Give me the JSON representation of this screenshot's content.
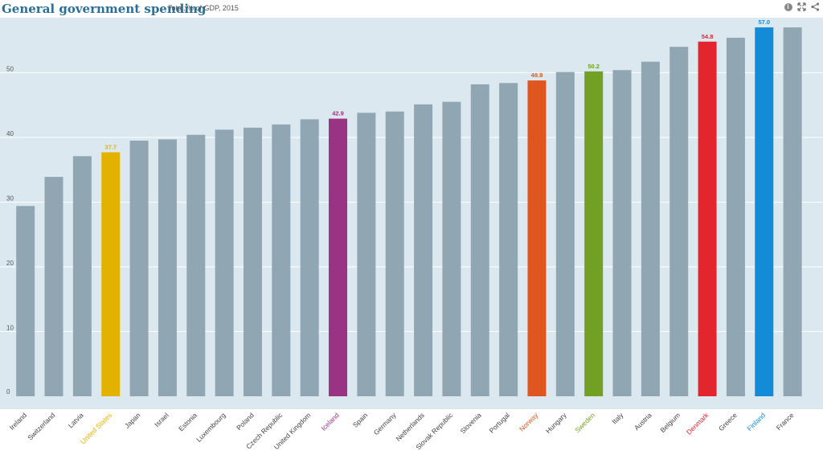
{
  "header": {
    "title": "General government spending",
    "subtitle": "Total, % of GDP, 2015",
    "icons": [
      "info-icon",
      "expand-icon",
      "share-icon"
    ]
  },
  "chart_data": {
    "type": "bar",
    "title": "General government spending",
    "subtitle": "Total, % of GDP, 2015",
    "xlabel": "",
    "ylabel": "",
    "ylim": [
      0,
      58.5
    ],
    "yticks": [
      "0",
      "10",
      "20",
      "30",
      "40",
      "50"
    ],
    "grid": true,
    "categories": [
      "Ireland",
      "Switzerland",
      "Latvia",
      "United States",
      "Japan",
      "Israel",
      "Estonia",
      "Luxembourg",
      "Poland",
      "Czech Republic",
      "United Kingdom",
      "Iceland",
      "Spain",
      "Germany",
      "Netherlands",
      "Slovak Republic",
      "Slovenia",
      "Portugal",
      "Norway",
      "Hungary",
      "Sweden",
      "Italy",
      "Austria",
      "Belgium",
      "Denmark",
      "Greece",
      "Finland",
      "France"
    ],
    "values": [
      29.4,
      33.9,
      37.1,
      37.7,
      39.5,
      39.7,
      40.4,
      41.2,
      41.5,
      42.0,
      42.8,
      42.9,
      43.8,
      44.0,
      45.1,
      45.5,
      48.2,
      48.4,
      48.8,
      50.1,
      50.2,
      50.4,
      51.7,
      54.0,
      54.8,
      55.4,
      57.0,
      57.0
    ],
    "default_color": "#91a6b3",
    "highlights": [
      {
        "category": "United States",
        "color": "#e3b100",
        "label": "37.7"
      },
      {
        "category": "Iceland",
        "color": "#9b3385",
        "label": "42.9"
      },
      {
        "category": "Norway",
        "color": "#e0561f",
        "label": "48.8"
      },
      {
        "category": "Sweden",
        "color": "#72a024",
        "label": "50.2"
      },
      {
        "category": "Denmark",
        "color": "#e3262d",
        "label": "54.8"
      },
      {
        "category": "Finland",
        "color": "#138bd6",
        "label": "57.0"
      }
    ]
  }
}
